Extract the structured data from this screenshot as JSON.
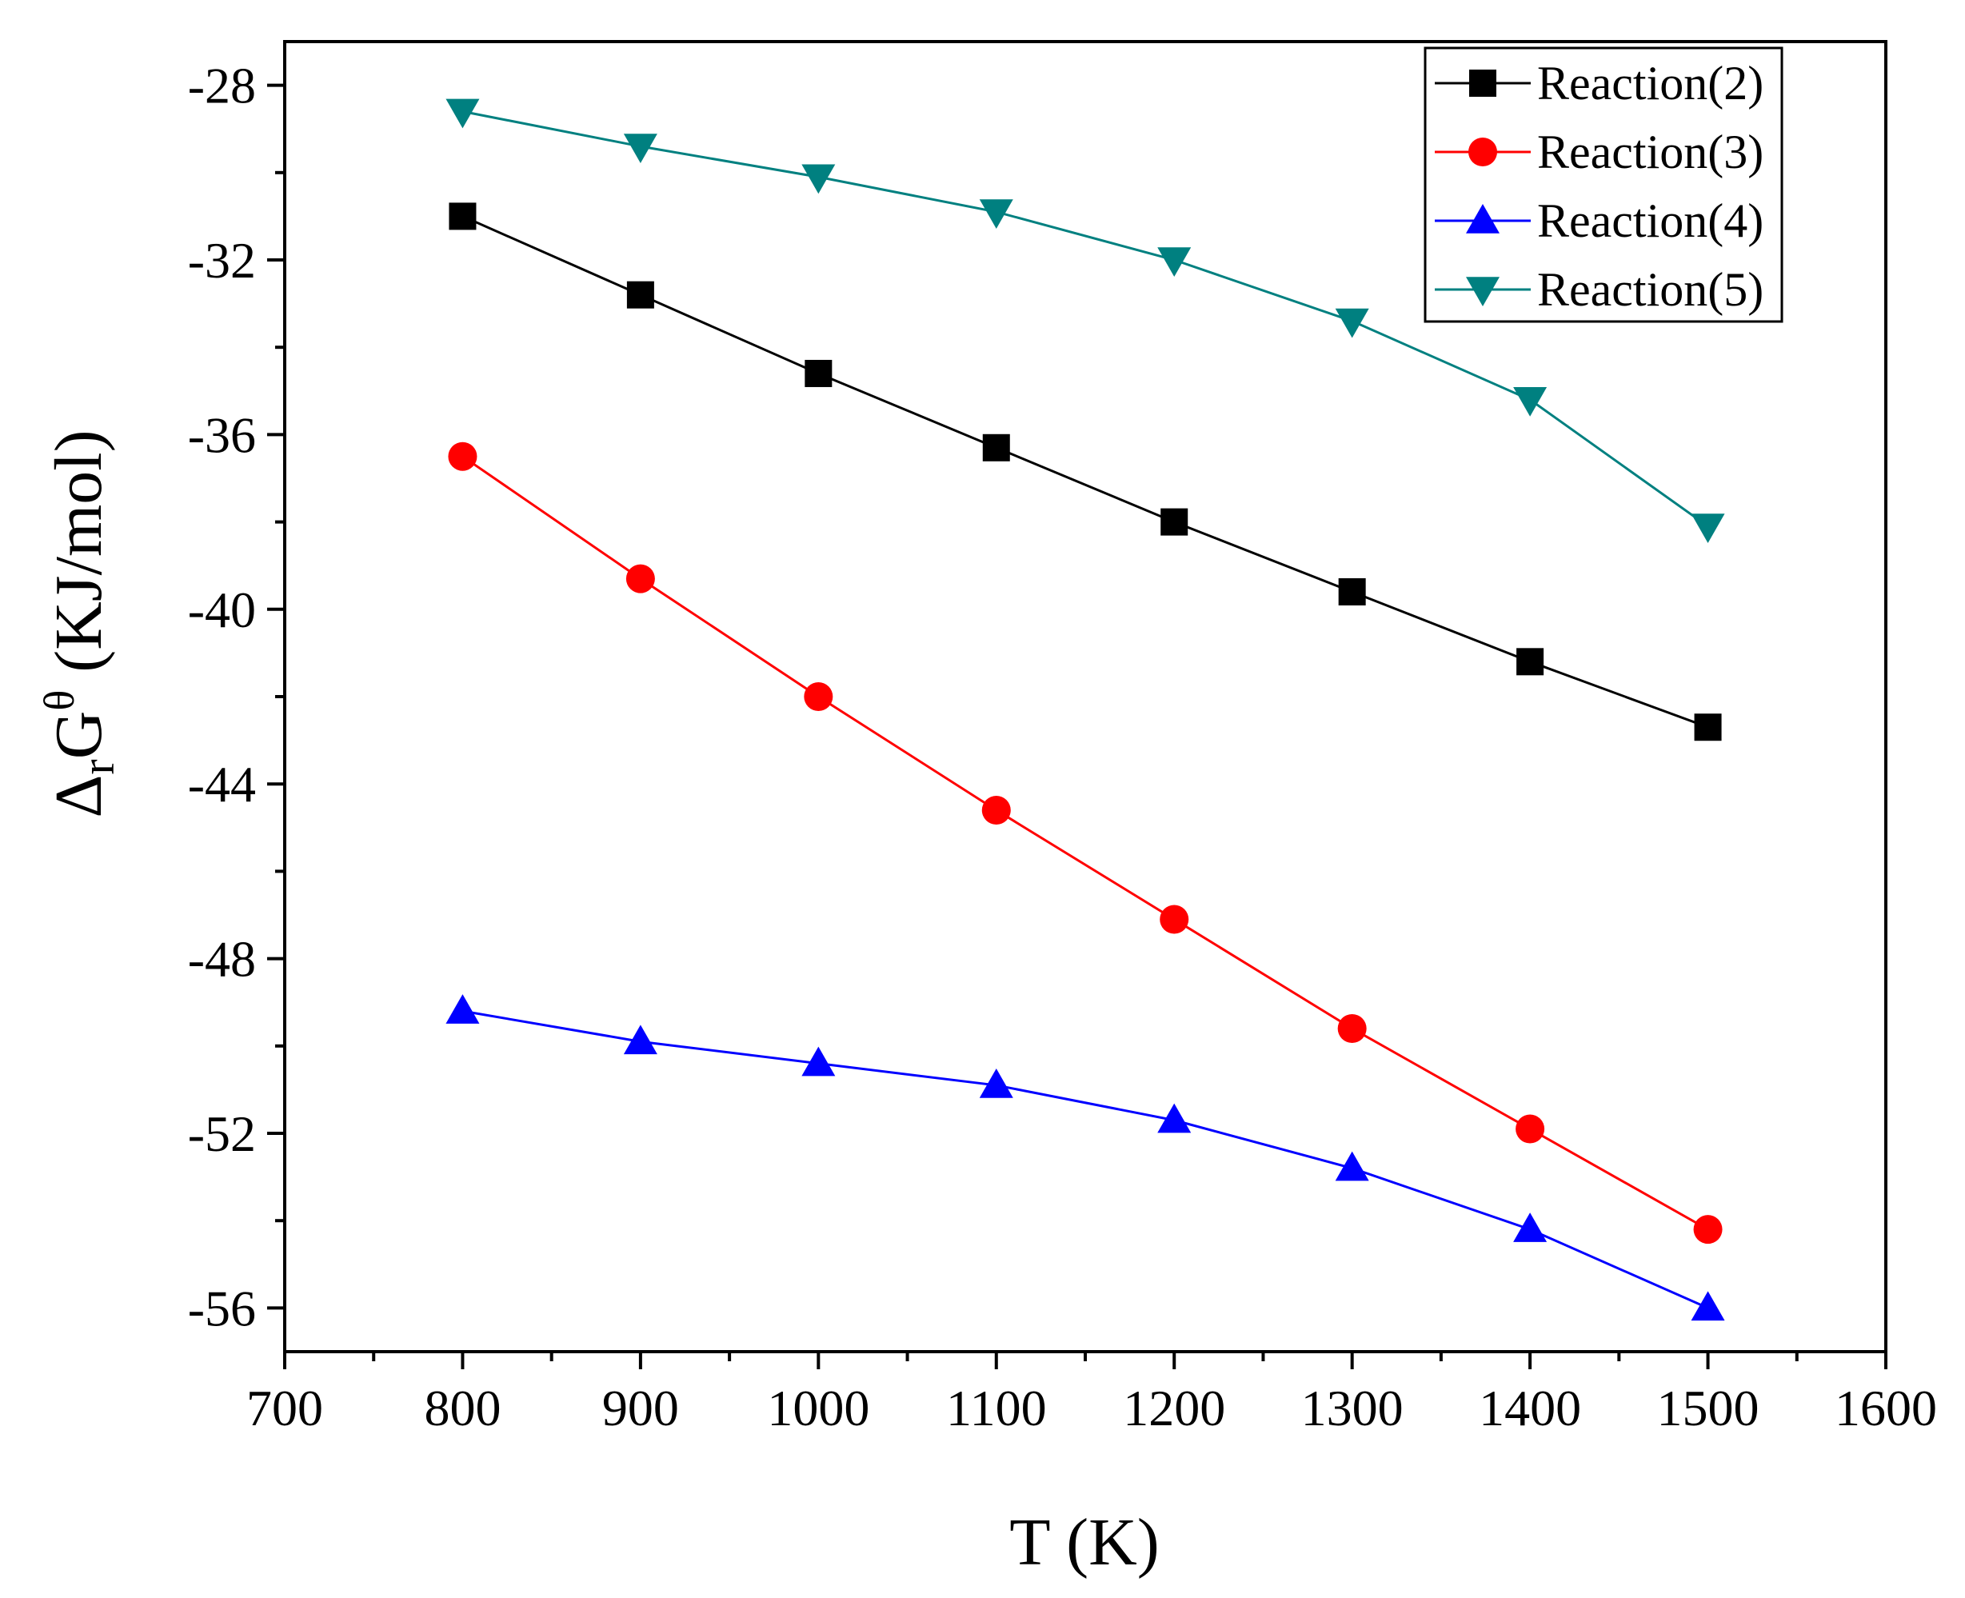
{
  "chart_data": {
    "type": "line",
    "title": "",
    "xlabel": "T (K)",
    "ylabel": {
      "delta": "Δ",
      "sub": "r",
      "main": "G",
      "sup": "θ",
      "units": "(KJ/mol)"
    },
    "xlim": [
      700,
      1600
    ],
    "ylim": [
      -57,
      -27
    ],
    "xticks": [
      700,
      800,
      900,
      1000,
      1100,
      1200,
      1300,
      1400,
      1500,
      1600
    ],
    "xtick_labels": [
      "700",
      "800",
      "900",
      "1000",
      "1100",
      "1200",
      "1300",
      "1400",
      "1500",
      "1600"
    ],
    "yticks": [
      -56,
      -52,
      -48,
      -44,
      -40,
      -36,
      -32,
      -28
    ],
    "ytick_labels": [
      "-56",
      "-52",
      "-48",
      "-44",
      "-40",
      "-36",
      "-32",
      "-28"
    ],
    "grid": false,
    "legend_position": "top-right",
    "x": [
      800,
      900,
      1000,
      1100,
      1200,
      1300,
      1400,
      1500
    ],
    "series": [
      {
        "name": "Reaction(2)",
        "marker": "square",
        "color": "#000000",
        "values": [
          -31.0,
          -32.8,
          -34.6,
          -36.3,
          -38.0,
          -39.6,
          -41.2,
          -42.7
        ]
      },
      {
        "name": "Reaction(3)",
        "marker": "circle",
        "color": "#ff0000",
        "values": [
          -36.5,
          -39.3,
          -42.0,
          -44.6,
          -47.1,
          -49.6,
          -51.9,
          -54.2
        ]
      },
      {
        "name": "Reaction(4)",
        "marker": "triangle-up",
        "color": "#0000ff",
        "values": [
          -49.2,
          -49.9,
          -50.4,
          -50.9,
          -51.7,
          -52.8,
          -54.2,
          -56.0
        ]
      },
      {
        "name": "Reaction(5)",
        "marker": "triangle-down",
        "color": "#008080",
        "values": [
          -28.6,
          -29.4,
          -30.1,
          -30.9,
          -32.0,
          -33.4,
          -35.2,
          -38.1
        ]
      }
    ]
  }
}
